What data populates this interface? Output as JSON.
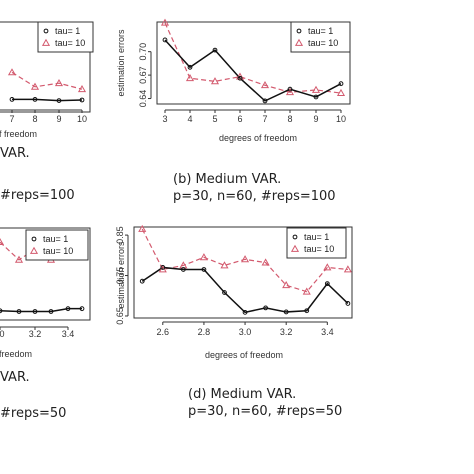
{
  "colors": {
    "black_series": "#111111",
    "red_series": "#d35a6e",
    "axis": "#333333"
  },
  "chart_data": [
    {
      "id": "a",
      "type": "line",
      "x": [
        7,
        8,
        9,
        10
      ],
      "xticks": [
        "7",
        "8",
        "9",
        "10"
      ],
      "xlabel": "of freedom",
      "series": [
        {
          "name": "tau= 1",
          "values": [
            0.6405,
            0.6405,
            0.6395,
            0.64
          ]
        },
        {
          "name": "tau= 10",
          "values": [
            0.663,
            0.651,
            0.654,
            0.649
          ]
        }
      ],
      "legend": "top-right",
      "caption_lines": [
        "VAR.",
        "#reps=100"
      ]
    },
    {
      "id": "b",
      "type": "line",
      "x": [
        3,
        4,
        5,
        6,
        7,
        8,
        9,
        10
      ],
      "xticks": [
        "3",
        "4",
        "5",
        "6",
        "7",
        "8",
        "9",
        "10"
      ],
      "yticks": [
        "0.64",
        "0.67",
        "0.70"
      ],
      "xlabel": "degrees of freedom",
      "ylabel": "estimation errors",
      "ylim": [
        0.633,
        0.738
      ],
      "series": [
        {
          "name": "tau= 1",
          "values": [
            0.715,
            0.68,
            0.702,
            0.666,
            0.637,
            0.652,
            0.642,
            0.659
          ]
        },
        {
          "name": "tau= 10",
          "values": [
            0.737,
            0.666,
            0.662,
            0.668,
            0.657,
            0.648,
            0.651,
            0.647
          ]
        }
      ],
      "legend": "top-right",
      "caption_lines": [
        "(b) Medium VAR.",
        "p=30, n=60, #reps=100"
      ]
    },
    {
      "id": "c",
      "type": "line",
      "x": [
        3.0,
        3.1,
        3.2,
        3.3,
        3.4,
        3.5
      ],
      "xticks": [
        "0",
        "3.2",
        "3.4"
      ],
      "xlabel": "f freedom",
      "series": [
        {
          "name": "tau= 1",
          "values": [
            0.663,
            0.662,
            0.662,
            0.662,
            0.666,
            0.666
          ]
        },
        {
          "name": "tau= 10",
          "values": [
            0.76,
            0.735,
            0.75,
            0.735,
            0.763,
            0.763
          ]
        }
      ],
      "legend": "top-right",
      "caption_lines": [
        "VAR.",
        "#reps=50"
      ]
    },
    {
      "id": "d",
      "type": "line",
      "x": [
        2.5,
        2.6,
        2.7,
        2.8,
        2.9,
        3.0,
        3.1,
        3.2,
        3.3,
        3.4,
        3.5
      ],
      "xticks": [
        "2.6",
        "2.8",
        "3.0",
        "3.2",
        "3.4"
      ],
      "xtick_values": [
        2.6,
        2.8,
        3.0,
        3.2,
        3.4
      ],
      "yticks": [
        "0.65",
        "0.75",
        "0.85"
      ],
      "ytick_values": [
        0.65,
        0.75,
        0.85
      ],
      "xlabel": "degrees of freedom",
      "ylabel": "estimation errors",
      "xlim": [
        2.46,
        3.52
      ],
      "ylim": [
        0.645,
        0.87
      ],
      "series": [
        {
          "name": "tau= 1",
          "values": [
            0.736,
            0.77,
            0.765,
            0.765,
            0.708,
            0.659,
            0.67,
            0.66,
            0.663,
            0.73,
            0.681
          ]
        },
        {
          "name": "tau= 10",
          "values": [
            0.865,
            0.765,
            0.775,
            0.795,
            0.775,
            0.79,
            0.782,
            0.726,
            0.71,
            0.77,
            0.765
          ]
        }
      ],
      "legend": "top-right",
      "caption_lines": [
        "(d) Medium VAR.",
        "p=30, n=60, #reps=50"
      ]
    }
  ]
}
